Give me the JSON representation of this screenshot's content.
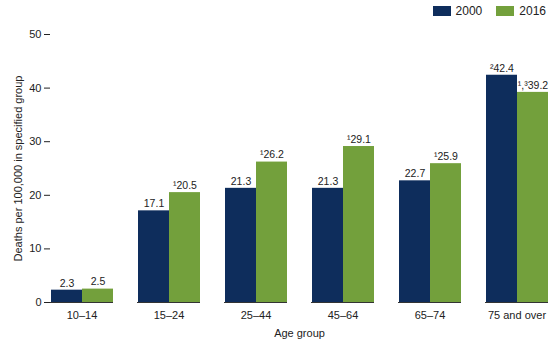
{
  "chart_data": {
    "type": "bar",
    "x_label": "Age group",
    "y_label": "Deaths per 100,000 in specified group",
    "categories": [
      "10–14",
      "15–24",
      "25–44",
      "45–64",
      "65–74",
      "75 and over"
    ],
    "series": [
      {
        "name": "2000",
        "color": "#0e2d5c",
        "values": [
          2.3,
          17.1,
          21.3,
          21.3,
          22.7,
          42.4
        ],
        "value_labels": [
          "2.3",
          "17.1",
          "21.3",
          "21.3",
          "22.7",
          "²42.4"
        ]
      },
      {
        "name": "2016",
        "color": "#73a03c",
        "values": [
          2.5,
          20.5,
          26.2,
          29.1,
          25.9,
          39.2
        ],
        "value_labels": [
          "2.5",
          "¹20.5",
          "¹26.2",
          "¹29.1",
          "¹25.9",
          "¹,³39.2"
        ]
      }
    ],
    "ylim": [
      0,
      50
    ],
    "yticks": [
      0,
      10,
      20,
      30,
      40,
      50
    ],
    "grid": false,
    "legend": "top-right",
    "data_labels": true
  }
}
